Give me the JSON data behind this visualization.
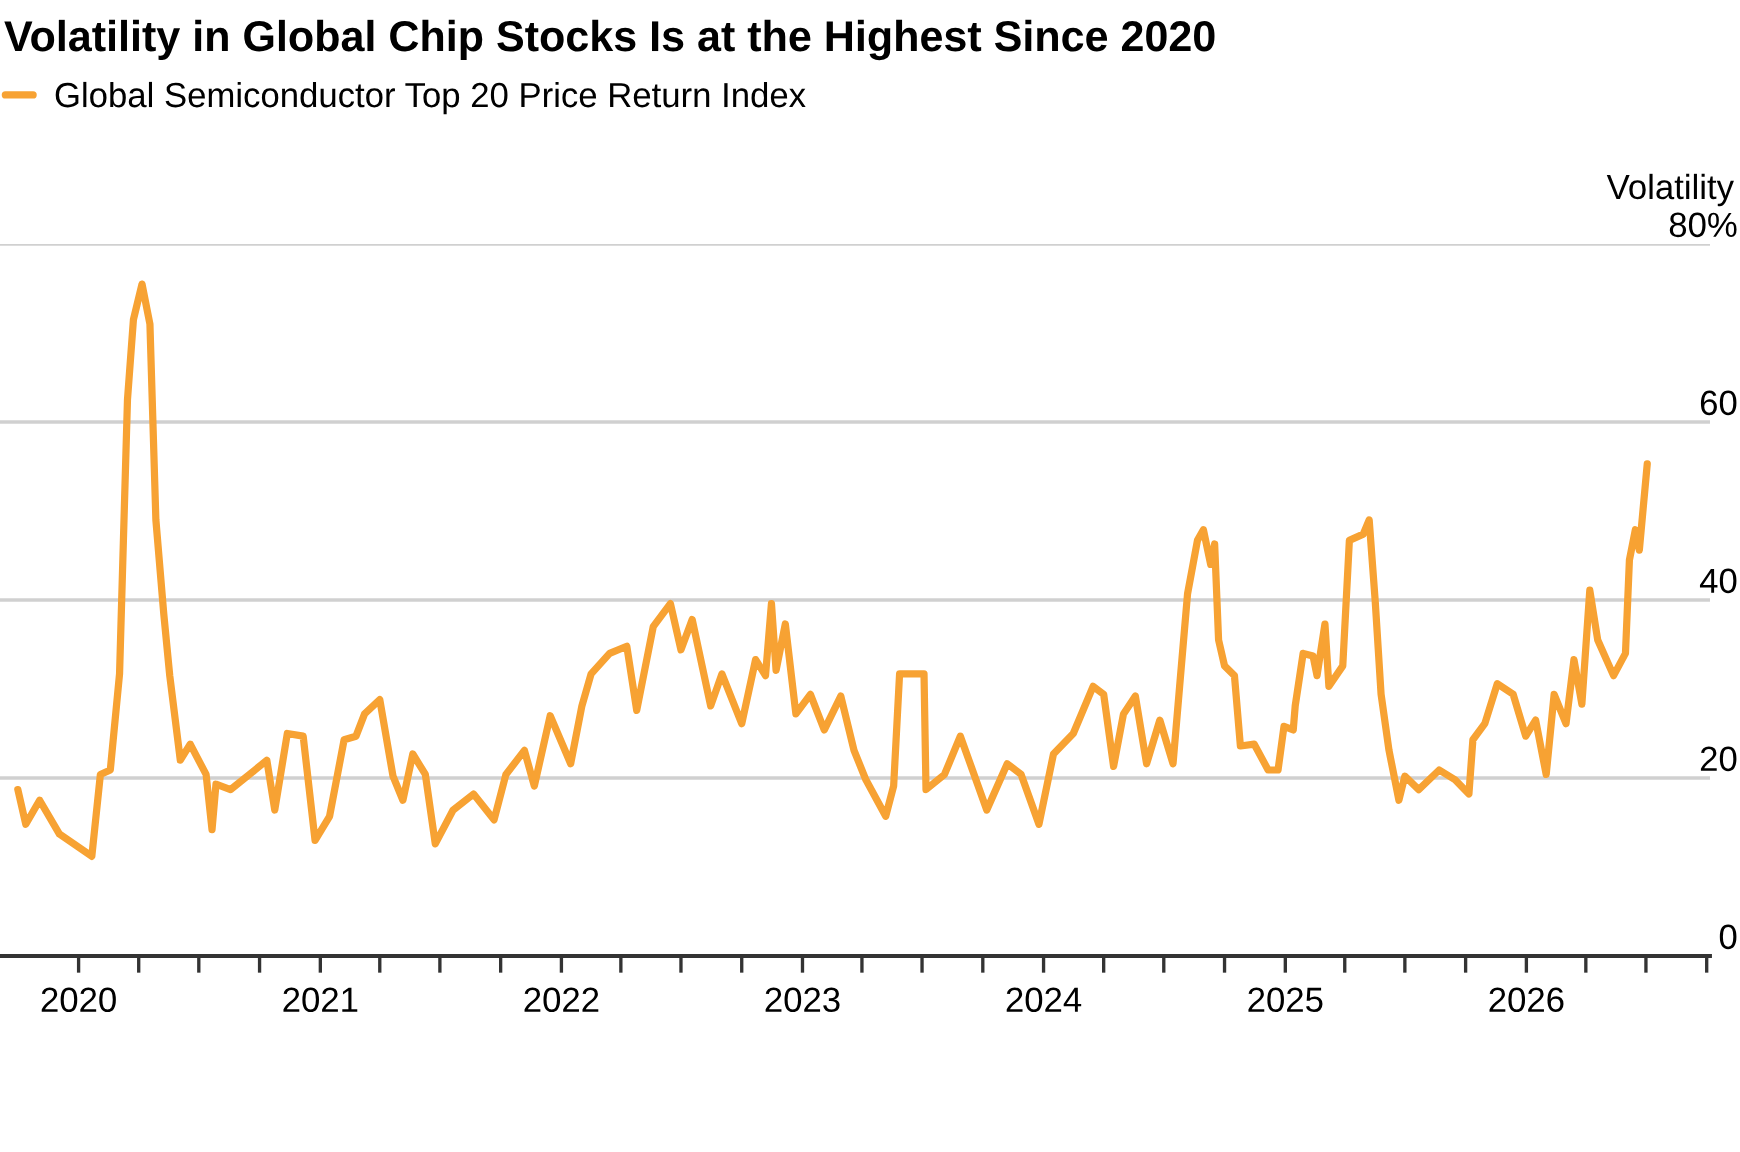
{
  "chart_data": {
    "type": "line",
    "title": "Volatility in Global Chip Stocks Is at the Highest Since 2020",
    "ylabel": "Volatility",
    "x": [
      "2019-10-01",
      "2019-10-13",
      "2019-11-03",
      "2019-12-03",
      "2020-01-21",
      "2020-02-03",
      "2020-02-18",
      "2020-03-03",
      "2020-03-15",
      "2020-03-24",
      "2020-04-06",
      "2020-04-18",
      "2020-04-27",
      "2020-05-09",
      "2020-05-18",
      "2020-06-03",
      "2020-06-18",
      "2020-07-12",
      "2020-07-21",
      "2020-07-27",
      "2020-08-18",
      "2020-09-24",
      "2020-10-12",
      "2020-10-24",
      "2020-11-12",
      "2020-12-06",
      "2020-12-24",
      "2021-01-15",
      "2021-02-06",
      "2021-02-24",
      "2021-03-09",
      "2021-04-01",
      "2021-04-21",
      "2021-05-06",
      "2021-05-21",
      "2021-06-09",
      "2021-06-24",
      "2021-07-21",
      "2021-08-21",
      "2021-09-21",
      "2021-10-09",
      "2021-11-06",
      "2021-11-21",
      "2021-12-15",
      "2022-01-15",
      "2022-02-01",
      "2022-02-15",
      "2022-03-15",
      "2022-04-10",
      "2022-04-25",
      "2022-05-20",
      "2022-06-15",
      "2022-07-01",
      "2022-07-18",
      "2022-08-15",
      "2022-09-01",
      "2022-10-01",
      "2022-10-22",
      "2022-11-06",
      "2022-11-15",
      "2022-11-22",
      "2022-12-06",
      "2022-12-22",
      "2023-01-13",
      "2023-02-03",
      "2023-02-28",
      "2023-03-20",
      "2023-04-07",
      "2023-05-07",
      "2023-05-19",
      "2023-05-28",
      "2023-07-04",
      "2023-07-07",
      "2023-08-04",
      "2023-08-28",
      "2023-10-07",
      "2023-11-07",
      "2023-11-28",
      "2023-12-25",
      "2024-01-16",
      "2024-02-15",
      "2024-03-16",
      "2024-04-01",
      "2024-04-16",
      "2024-05-01",
      "2024-05-19",
      "2024-06-05",
      "2024-06-25",
      "2024-07-15",
      "2024-07-25",
      "2024-08-06",
      "2024-08-21",
      "2024-08-30",
      "2024-09-10",
      "2024-09-16",
      "2024-09-22",
      "2024-10-01",
      "2024-10-16",
      "2024-10-25",
      "2024-11-15",
      "2024-12-06",
      "2024-12-21",
      "2024-12-30",
      "2025-01-13",
      "2025-01-16",
      "2025-01-28",
      "2025-02-12",
      "2025-02-18",
      "2025-03-02",
      "2025-03-08",
      "2025-03-29",
      "2025-04-08",
      "2025-04-29",
      "2025-05-08",
      "2025-05-17",
      "2025-05-26",
      "2025-06-07",
      "2025-06-22",
      "2025-07-01",
      "2025-07-22",
      "2025-08-22",
      "2025-09-15",
      "2025-10-06",
      "2025-10-12",
      "2025-10-30",
      "2025-11-18",
      "2025-12-12",
      "2025-12-31",
      "2026-01-15",
      "2026-01-31",
      "2026-02-12",
      "2026-03-02",
      "2026-03-14",
      "2026-03-26",
      "2026-04-07",
      "2026-04-19",
      "2026-05-13",
      "2026-05-31",
      "2026-06-06",
      "2026-06-15",
      "2026-06-21",
      "2026-07-03"
    ],
    "series": [
      {
        "name": "Global Semiconductor Top 20 Price Return Index",
        "color": "#f7a233",
        "values": [
          18.7,
          14.8,
          17.5,
          13.7,
          11.2,
          20.4,
          20.9,
          31.7,
          62.5,
          71.5,
          75.5,
          71,
          49,
          38.4,
          31.5,
          22,
          23.8,
          20.4,
          14.2,
          19.3,
          18.7,
          20.9,
          22,
          16.4,
          25,
          24.7,
          13,
          15.7,
          24.3,
          24.7,
          27.2,
          28.8,
          20.2,
          17.5,
          22.7,
          20.4,
          12.6,
          16.4,
          18.2,
          15.3,
          20.4,
          23.1,
          19.1,
          27,
          21.6,
          28.1,
          31.7,
          34,
          34.8,
          27.6,
          37,
          39.6,
          34.4,
          37.8,
          28.1,
          31.7,
          26.1,
          33.3,
          31.5,
          39.6,
          32.1,
          37.3,
          27.2,
          29.4,
          25.4,
          29.2,
          23.1,
          19.8,
          15.7,
          19.1,
          31.7,
          31.7,
          18.7,
          20.4,
          24.7,
          16.4,
          21.6,
          20.4,
          14.8,
          22.7,
          25,
          30.3,
          29.4,
          21.3,
          27.2,
          29.2,
          21.6,
          26.5,
          21.6,
          30.3,
          40.7,
          46.7,
          47.9,
          44,
          46.3,
          35.5,
          32.6,
          31.5,
          23.6,
          23.8,
          20.9,
          20.9,
          25.8,
          25.4,
          28.1,
          34,
          33.7,
          31.5,
          37.3,
          30.3,
          32.6,
          46.7,
          47.4,
          49,
          40,
          29.4,
          23.1,
          17.5,
          20.2,
          18.7,
          20.9,
          19.8,
          18.2,
          24.3,
          26.1,
          30.6,
          29.4,
          24.7,
          26.5,
          20.4,
          29.4,
          26.1,
          33.3,
          28.3,
          41.1,
          35.5,
          31.5,
          34,
          44.5,
          47.9,
          45.6,
          55.3
        ]
      }
    ],
    "xlim": [
      "2019-09-04",
      "2026-10-06"
    ],
    "xticks": [
      {
        "value": "2020-01-01",
        "label": "2020"
      },
      {
        "value": "2020-04-01",
        "label": null
      },
      {
        "value": "2020-07-01",
        "label": null
      },
      {
        "value": "2020-10-01",
        "label": null
      },
      {
        "value": "2021-01-01",
        "label": "2021"
      },
      {
        "value": "2021-04-01",
        "label": null
      },
      {
        "value": "2021-07-01",
        "label": null
      },
      {
        "value": "2021-10-01",
        "label": null
      },
      {
        "value": "2022-01-01",
        "label": "2022"
      },
      {
        "value": "2022-04-01",
        "label": null
      },
      {
        "value": "2022-07-01",
        "label": null
      },
      {
        "value": "2022-10-01",
        "label": null
      },
      {
        "value": "2023-01-01",
        "label": "2023"
      },
      {
        "value": "2023-04-01",
        "label": null
      },
      {
        "value": "2023-07-01",
        "label": null
      },
      {
        "value": "2023-10-01",
        "label": null
      },
      {
        "value": "2024-01-01",
        "label": "2024"
      },
      {
        "value": "2024-04-01",
        "label": null
      },
      {
        "value": "2024-07-01",
        "label": null
      },
      {
        "value": "2024-10-01",
        "label": null
      },
      {
        "value": "2025-01-01",
        "label": "2025"
      },
      {
        "value": "2025-04-01",
        "label": null
      },
      {
        "value": "2025-07-01",
        "label": null
      },
      {
        "value": "2025-10-01",
        "label": null
      },
      {
        "value": "2026-01-01",
        "label": "2026"
      },
      {
        "value": "2026-04-01",
        "label": null
      },
      {
        "value": "2026-07-01",
        "label": null
      },
      {
        "value": "2026-10-01",
        "label": null
      }
    ],
    "ylim": [
      0,
      80
    ],
    "yticks": [
      0,
      20,
      40,
      60,
      {
        "value": 80,
        "label": "80%"
      }
    ],
    "grid": "y",
    "legend": "top left",
    "line_style": "solid",
    "marker": "none"
  }
}
